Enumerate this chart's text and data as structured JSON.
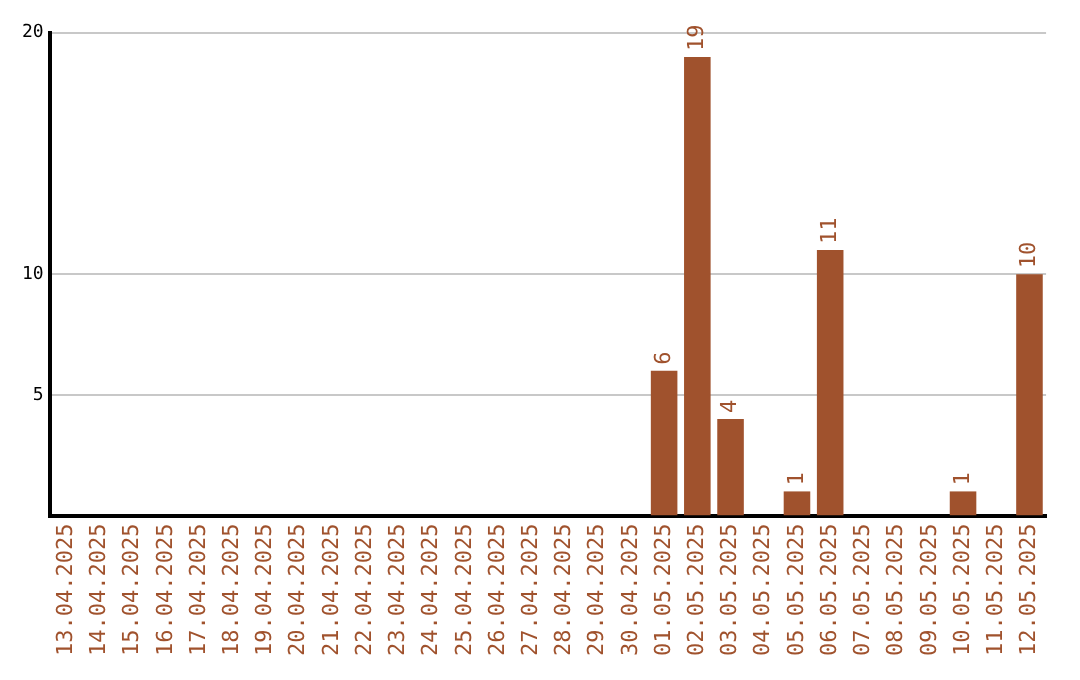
{
  "chart_data": {
    "type": "bar",
    "categories": [
      "13.04.2025",
      "14.04.2025",
      "15.04.2025",
      "16.04.2025",
      "17.04.2025",
      "18.04.2025",
      "19.04.2025",
      "20.04.2025",
      "21.04.2025",
      "22.04.2025",
      "23.04.2025",
      "24.04.2025",
      "25.04.2025",
      "26.04.2025",
      "27.04.2025",
      "28.04.2025",
      "29.04.2025",
      "30.04.2025",
      "01.05.2025",
      "02.05.2025",
      "03.05.2025",
      "04.05.2025",
      "05.05.2025",
      "06.05.2025",
      "07.05.2025",
      "08.05.2025",
      "09.05.2025",
      "10.05.2025",
      "11.05.2025",
      "12.05.2025"
    ],
    "values": [
      0,
      0,
      0,
      0,
      0,
      0,
      0,
      0,
      0,
      0,
      0,
      0,
      0,
      0,
      0,
      0,
      0,
      0,
      6,
      19,
      4,
      0,
      1,
      11,
      0,
      0,
      0,
      1,
      0,
      10
    ],
    "value_labels": [
      null,
      null,
      null,
      null,
      null,
      null,
      null,
      null,
      null,
      null,
      null,
      null,
      null,
      null,
      null,
      null,
      null,
      null,
      "6",
      "19",
      "4",
      null,
      "1",
      "11",
      null,
      null,
      null,
      "1",
      null,
      "10"
    ],
    "color": "#a0522d",
    "ylim": [
      0,
      20
    ],
    "yticks": [
      5,
      10,
      20
    ],
    "grid": "y",
    "legend": false
  }
}
